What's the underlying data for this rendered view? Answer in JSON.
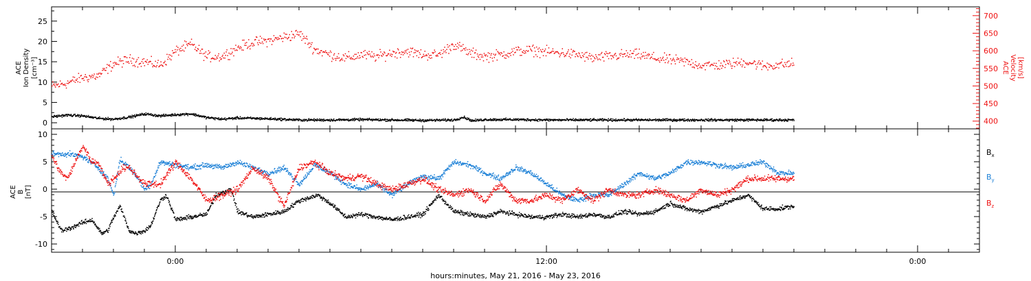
{
  "xlabel": "hours:minutes, May 21, 2016 - May 23, 2016",
  "chart_data": [
    {
      "type": "scatter",
      "panel": "plasma",
      "title": "",
      "x_unit": "hours relative to May 22, 2016 00:00",
      "xlim": [
        -4.0,
        26.0
      ],
      "x_ticks": [
        {
          "value": 0,
          "label": "0:00"
        },
        {
          "value": 12,
          "label": "12:00"
        },
        {
          "value": 24,
          "label": "0:00"
        }
      ],
      "y_left": {
        "label_lines": [
          "ACE",
          "Ion Density",
          "[cm⁻³]"
        ],
        "ylim": [
          -1.5,
          28.5
        ],
        "ticks": [
          0,
          5,
          10,
          15,
          20,
          25
        ],
        "color": "#000000"
      },
      "y_right": {
        "label_lines": [
          "ACE",
          "Velocity",
          "[km/s]"
        ],
        "ylim": [
          378,
          725
        ],
        "ticks": [
          400,
          450,
          500,
          550,
          600,
          650,
          700
        ],
        "color": "#ee1111"
      },
      "series": [
        {
          "name": "ACE Ion Density",
          "axis": "left",
          "color": "#000000",
          "x": [
            -4.0,
            -3.5,
            -3.0,
            -2.5,
            -2.0,
            -1.5,
            -1.0,
            -0.5,
            0.0,
            0.5,
            1.0,
            1.5,
            2.0,
            3.0,
            4.0,
            5.0,
            6.0,
            7.0,
            8.0,
            9.0,
            9.3,
            9.6,
            10.0,
            11.0,
            12.0,
            13.0,
            14.0,
            15.0,
            16.0,
            17.0,
            18.0,
            19.0,
            20.0
          ],
          "y": [
            1.6,
            2.0,
            1.8,
            1.2,
            1.0,
            1.5,
            2.3,
            1.8,
            2.1,
            2.3,
            1.4,
            1.0,
            1.3,
            1.1,
            0.8,
            0.8,
            0.9,
            0.8,
            0.7,
            0.8,
            1.5,
            0.6,
            0.9,
            0.9,
            0.8,
            0.8,
            0.8,
            0.8,
            0.8,
            0.8,
            0.8,
            0.8,
            0.8
          ]
        },
        {
          "name": "ACE Velocity",
          "axis": "right",
          "color": "#ee1111",
          "x": [
            -4.0,
            -3.5,
            -3.0,
            -2.5,
            -2.0,
            -1.5,
            -1.0,
            -0.5,
            0.0,
            0.5,
            1.0,
            1.5,
            2.0,
            2.5,
            3.0,
            3.5,
            4.0,
            4.5,
            5.0,
            5.5,
            6.0,
            6.5,
            7.0,
            7.5,
            8.0,
            8.5,
            9.0,
            9.5,
            10.0,
            10.5,
            11.0,
            11.5,
            12.0,
            12.5,
            13.0,
            13.5,
            14.0,
            14.5,
            15.0,
            15.5,
            16.0,
            16.5,
            17.0,
            17.5,
            18.0,
            18.5,
            19.0,
            19.5,
            20.0
          ],
          "y": [
            500,
            510,
            525,
            530,
            565,
            575,
            570,
            560,
            600,
            620,
            585,
            585,
            610,
            625,
            630,
            640,
            650,
            605,
            590,
            580,
            590,
            585,
            595,
            600,
            590,
            590,
            620,
            595,
            585,
            590,
            600,
            603,
            598,
            595,
            590,
            580,
            585,
            590,
            590,
            580,
            575,
            570,
            560,
            560,
            565,
            570,
            558,
            562,
            565
          ]
        }
      ]
    },
    {
      "type": "scatter",
      "panel": "magnetic",
      "title": "",
      "x_unit": "hours relative to May 22, 2016 00:00",
      "xlim": [
        -4.0,
        26.0
      ],
      "y_left": {
        "label_lines": [
          "ACE",
          "B",
          "[nT]"
        ],
        "ylim": [
          -11.5,
          11.0
        ],
        "ticks": [
          -10,
          -5,
          0,
          5,
          10
        ]
      },
      "zero_line": true,
      "legend_position": "right",
      "series": [
        {
          "name": "Bx",
          "legend": {
            "base": "B",
            "sub": "x"
          },
          "color": "#000000",
          "x": [
            -4.0,
            -3.7,
            -3.4,
            -3.0,
            -2.7,
            -2.4,
            -2.2,
            -2.0,
            -1.8,
            -1.5,
            -1.3,
            -1.2,
            -1.0,
            -0.8,
            -0.5,
            -0.3,
            0.0,
            0.5,
            1.0,
            1.3,
            1.5,
            1.8,
            2.0,
            2.5,
            3.0,
            3.5,
            4.0,
            4.3,
            4.6,
            5.0,
            5.5,
            6.0,
            6.5,
            7.0,
            7.5,
            8.0,
            8.5,
            9.0,
            9.5,
            10.0,
            10.5,
            11.0,
            11.5,
            12.0,
            12.5,
            13.0,
            13.5,
            14.0,
            14.5,
            15.0,
            15.5,
            16.0,
            16.5,
            17.0,
            17.5,
            18.0,
            18.5,
            19.0,
            19.5,
            20.0
          ],
          "y": [
            -4.0,
            -7.5,
            -7.0,
            -6.0,
            -5.5,
            -8.0,
            -7.5,
            -5.0,
            -3.0,
            -7.5,
            -8.0,
            -7.8,
            -7.5,
            -6.5,
            -2.0,
            -1.0,
            -5.5,
            -5.0,
            -4.5,
            -1.0,
            -0.5,
            0.0,
            -4.0,
            -5.0,
            -4.5,
            -4.0,
            -2.0,
            -1.5,
            -1.0,
            -2.5,
            -5.0,
            -4.5,
            -5.0,
            -5.5,
            -5.0,
            -4.5,
            -1.0,
            -4.0,
            -4.5,
            -5.0,
            -4.0,
            -4.5,
            -5.0,
            -5.0,
            -4.5,
            -5.0,
            -4.5,
            -5.0,
            -4.0,
            -4.5,
            -4.0,
            -2.5,
            -3.5,
            -4.0,
            -3.0,
            -2.0,
            -1.0,
            -3.5,
            -3.5,
            -3.0
          ]
        },
        {
          "name": "By",
          "legend": {
            "base": "B",
            "sub": "y"
          },
          "color": "#1a7fd6",
          "x": [
            -4.0,
            -3.5,
            -3.0,
            -2.5,
            -2.2,
            -2.0,
            -1.8,
            -1.5,
            -1.2,
            -1.0,
            -0.8,
            -0.5,
            0.0,
            0.5,
            1.0,
            1.5,
            2.0,
            2.5,
            3.0,
            3.5,
            4.0,
            4.5,
            5.0,
            5.5,
            6.0,
            6.5,
            7.0,
            7.5,
            8.0,
            8.5,
            9.0,
            9.5,
            10.0,
            10.5,
            11.0,
            11.5,
            12.0,
            12.5,
            13.0,
            13.5,
            14.0,
            14.5,
            15.0,
            15.5,
            16.0,
            16.5,
            17.0,
            17.5,
            18.0,
            18.5,
            19.0,
            19.5,
            20.0
          ],
          "y": [
            6.5,
            6.5,
            6.0,
            4.0,
            2.0,
            -1.0,
            5.5,
            4.0,
            2.0,
            0.0,
            1.0,
            5.0,
            4.5,
            4.0,
            4.5,
            4.0,
            5.0,
            4.0,
            3.0,
            4.0,
            1.0,
            4.5,
            3.0,
            1.0,
            0.0,
            1.0,
            -1.0,
            1.0,
            2.5,
            2.0,
            5.0,
            4.5,
            3.0,
            2.0,
            4.0,
            3.0,
            1.0,
            -1.0,
            -2.0,
            -1.0,
            -1.0,
            1.0,
            3.0,
            2.0,
            3.0,
            5.0,
            5.0,
            4.5,
            4.0,
            4.5,
            5.0,
            3.0,
            3.0
          ]
        },
        {
          "name": "Bz",
          "legend": {
            "base": "B",
            "sub": "z"
          },
          "color": "#ee1111",
          "x": [
            -4.0,
            -3.7,
            -3.5,
            -3.0,
            -2.7,
            -2.5,
            -2.2,
            -2.0,
            -1.7,
            -1.5,
            -1.0,
            -0.7,
            -0.5,
            0.0,
            0.5,
            1.0,
            1.5,
            2.0,
            2.5,
            3.0,
            3.5,
            4.0,
            4.5,
            5.0,
            5.5,
            6.0,
            6.5,
            7.0,
            7.5,
            8.0,
            8.5,
            9.0,
            9.5,
            10.0,
            10.5,
            11.0,
            11.5,
            12.0,
            12.5,
            13.0,
            13.5,
            14.0,
            14.5,
            15.0,
            15.5,
            16.0,
            16.5,
            17.0,
            17.5,
            18.0,
            18.5,
            19.0,
            19.5,
            20.0
          ],
          "y": [
            6.0,
            3.0,
            2.0,
            8.0,
            5.0,
            5.0,
            1.0,
            2.0,
            4.0,
            4.0,
            1.0,
            1.0,
            1.0,
            5.0,
            2.0,
            -2.0,
            -1.0,
            0.0,
            4.0,
            2.0,
            -3.0,
            4.0,
            5.0,
            3.0,
            2.0,
            2.5,
            1.0,
            0.0,
            1.0,
            2.0,
            0.0,
            -1.0,
            0.0,
            -2.0,
            1.0,
            -2.0,
            -2.0,
            -1.0,
            -2.0,
            0.0,
            -2.0,
            0.0,
            -1.0,
            -1.0,
            0.0,
            -1.0,
            -2.0,
            0.0,
            -1.0,
            0.0,
            2.0,
            2.0,
            2.0,
            2.0
          ]
        }
      ]
    }
  ]
}
